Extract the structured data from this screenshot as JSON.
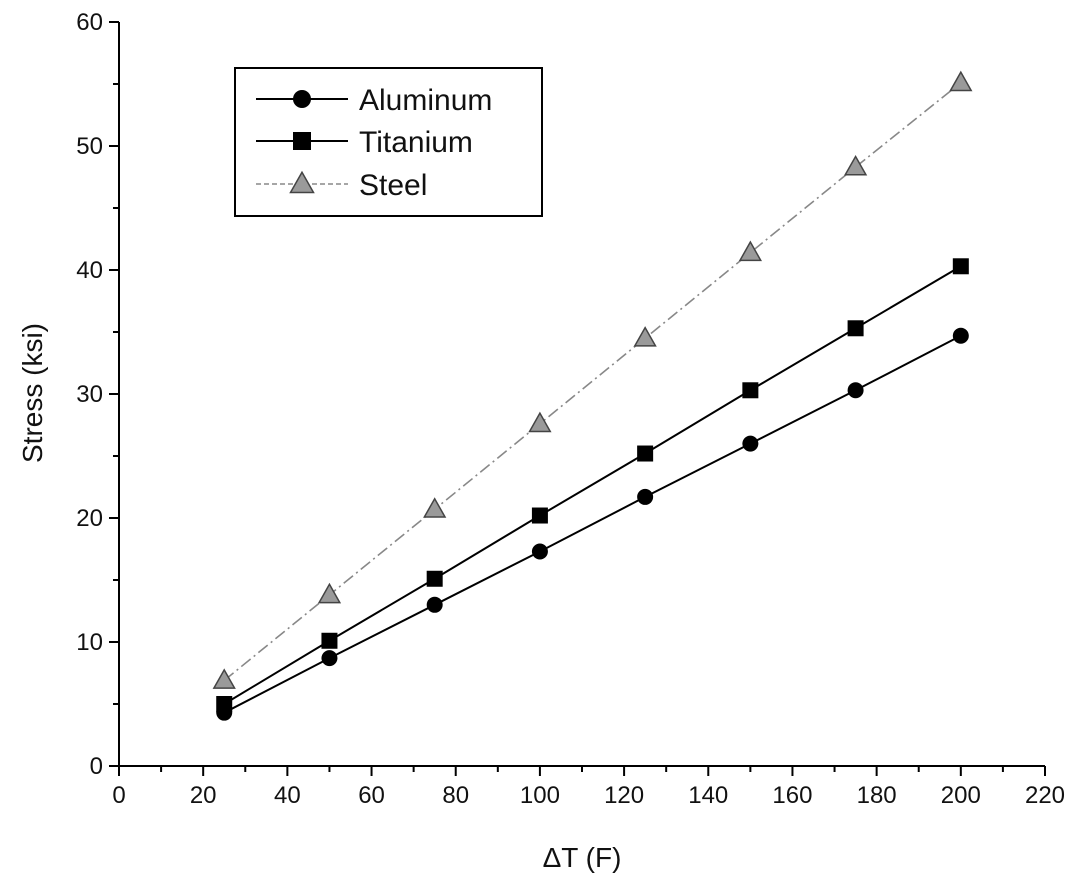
{
  "chart_data": {
    "type": "line",
    "title": "",
    "xlabel": "ΔT (F)",
    "ylabel": "Stress (ksi)",
    "xlim": [
      0,
      220
    ],
    "ylim": [
      0,
      60
    ],
    "x_ticks": [
      "0",
      "20",
      "40",
      "60",
      "80",
      "100",
      "120",
      "140",
      "160",
      "180",
      "200",
      "220"
    ],
    "y_ticks": [
      "0",
      "10",
      "20",
      "30",
      "40",
      "50",
      "60"
    ],
    "grid": false,
    "legend_position": "top-left",
    "x": [
      25,
      50,
      75,
      100,
      125,
      150,
      175,
      200
    ],
    "series": [
      {
        "name": "Aluminum",
        "marker": "circle",
        "line_style": "solid",
        "color": "#000000",
        "values": [
          4.3,
          8.7,
          13.0,
          17.3,
          21.7,
          26.0,
          30.3,
          34.7
        ]
      },
      {
        "name": "Titanium",
        "marker": "square",
        "line_style": "solid",
        "color": "#000000",
        "values": [
          5.0,
          10.1,
          15.1,
          20.2,
          25.2,
          30.3,
          35.3,
          40.3
        ]
      },
      {
        "name": "Steel",
        "marker": "triangle",
        "line_style": "dash-dot",
        "color": "#888888",
        "values": [
          6.9,
          13.8,
          20.7,
          27.6,
          34.5,
          41.4,
          48.3,
          55.1
        ]
      }
    ]
  }
}
